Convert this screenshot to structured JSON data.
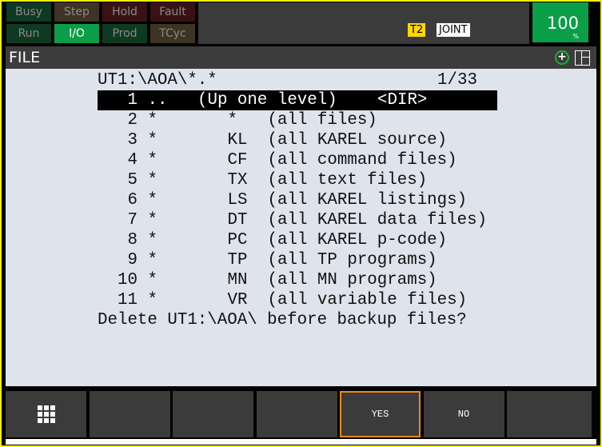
{
  "status": {
    "row1": [
      "Busy",
      "Step",
      "Hold",
      "Fault"
    ],
    "row2": [
      "Run",
      "I/O",
      "Prod",
      "TCyc"
    ],
    "active": "I/O"
  },
  "mode": {
    "tp": "T2",
    "coord": "JOINT"
  },
  "override": {
    "value": "100",
    "unit": "%"
  },
  "title": "FILE",
  "file": {
    "path": "UT1:\\AOA\\*.*",
    "position": "1/33",
    "selected_row": 0,
    "rows": [
      {
        "num": "1",
        "name": "..",
        "type": "",
        "desc": "(Up one level)",
        "tag": "<DIR>"
      },
      {
        "num": "2",
        "name": "*",
        "type": "*",
        "desc": "(all files)"
      },
      {
        "num": "3",
        "name": "*",
        "type": "KL",
        "desc": "(all KAREL source)"
      },
      {
        "num": "4",
        "name": "*",
        "type": "CF",
        "desc": "(all command files)"
      },
      {
        "num": "5",
        "name": "*",
        "type": "TX",
        "desc": "(all text files)"
      },
      {
        "num": "6",
        "name": "*",
        "type": "LS",
        "desc": "(all KAREL listings)"
      },
      {
        "num": "7",
        "name": "*",
        "type": "DT",
        "desc": "(all KAREL data files)"
      },
      {
        "num": "8",
        "name": "*",
        "type": "PC",
        "desc": "(all KAREL p-code)"
      },
      {
        "num": "9",
        "name": "*",
        "type": "TP",
        "desc": "(all TP programs)"
      },
      {
        "num": "10",
        "name": "*",
        "type": "MN",
        "desc": "(all MN programs)"
      },
      {
        "num": "11",
        "name": "*",
        "type": "VR",
        "desc": "(all variable files)"
      }
    ],
    "prompt": "Delete UT1:\\AOA\\ before backup files?"
  },
  "function_keys": [
    "",
    "",
    "",
    "",
    "YES",
    "NO",
    ""
  ],
  "colors": {
    "frame": "#f4f400",
    "active_green": "#0a9e48",
    "selected_key": "#f08a10"
  }
}
